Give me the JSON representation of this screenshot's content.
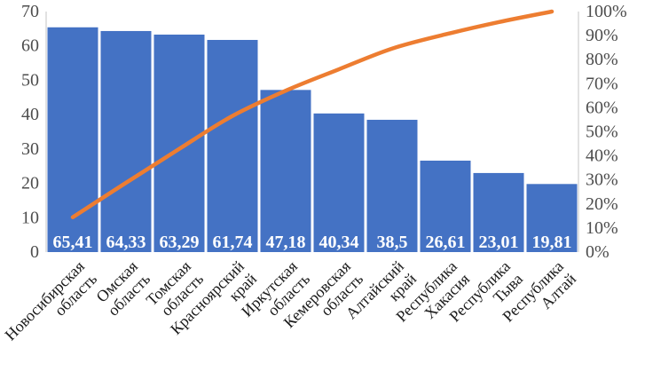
{
  "chart_data": {
    "type": "pareto",
    "title": "",
    "categories": [
      "Новосибирская область",
      "Омская область",
      "Томская область",
      "Красноярский край",
      "Иркутская область",
      "Кемеровская область",
      "Алтайский край",
      "Республика Хакасия",
      "Республика Тыва",
      "Республика Алтай"
    ],
    "series": [
      {
        "name": "bar-values",
        "type": "bar",
        "values": [
          65.41,
          64.33,
          63.29,
          61.74,
          47.18,
          40.34,
          38.5,
          26.61,
          23.01,
          19.81
        ],
        "data_labels": [
          "65,41",
          "64,33",
          "63,29",
          "61,74",
          "47,18",
          "40,34",
          "38,5",
          "26,61",
          "23,01",
          "19,81"
        ],
        "color": "#4472C4"
      },
      {
        "name": "cumulative-percent-line",
        "type": "line",
        "values_percent": [
          14.5,
          28.8,
          42.9,
          56.6,
          67.1,
          76.0,
          84.6,
          90.5,
          95.6,
          100.0
        ],
        "color": "#ED7D31"
      }
    ],
    "left_axis": {
      "min": 0,
      "max": 70,
      "tick_labels": [
        "0",
        "10",
        "20",
        "30",
        "40",
        "50",
        "60",
        "70"
      ]
    },
    "right_axis": {
      "min_label": "0%",
      "max_label": "100%",
      "tick_labels": [
        "0%",
        "10%",
        "20%",
        "30%",
        "40%",
        "50%",
        "60%",
        "70%",
        "80%",
        "90%",
        "100%"
      ]
    },
    "layout": {
      "gridlines": false,
      "legend": "none",
      "category_label_rotation_deg": 45
    }
  },
  "colors": {
    "background": "#FFFFFF",
    "bar": "#4472C4",
    "line": "#ED7D31",
    "axis_line": "#D9D9D9",
    "tick_text": "#4D4D4D",
    "category_text": "#1A1A1A",
    "data_label_text": "#FFFFFF"
  }
}
